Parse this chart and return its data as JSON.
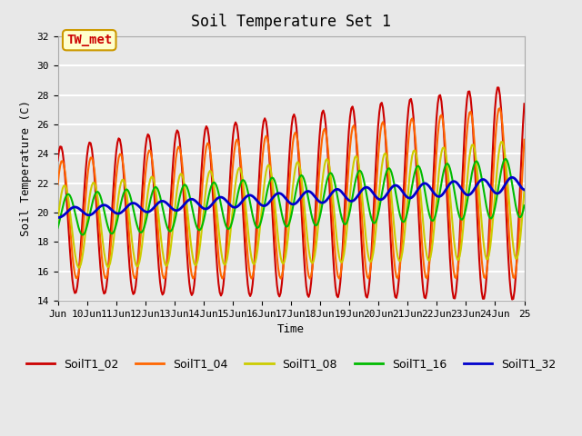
{
  "title": "Soil Temperature Set 1",
  "xlabel": "Time",
  "ylabel": "Soil Temperature (C)",
  "ylim": [
    14,
    32
  ],
  "xlim_start": 9.0,
  "xlim_end": 25.0,
  "background_color": "#e8e8e8",
  "plot_bg_color": "#e8e8e8",
  "grid_color": "white",
  "annotation_text": "TW_met",
  "annotation_color": "#cc0000",
  "annotation_bg": "#ffffcc",
  "annotation_border": "#cc9900",
  "series_colors": {
    "SoilT1_02": "#cc0000",
    "SoilT1_04": "#ff6600",
    "SoilT1_08": "#cccc00",
    "SoilT1_16": "#00bb00",
    "SoilT1_32": "#0000cc"
  },
  "series_linewidths": {
    "SoilT1_02": 1.5,
    "SoilT1_04": 1.5,
    "SoilT1_08": 1.5,
    "SoilT1_16": 1.5,
    "SoilT1_32": 2.0
  },
  "xtick_labels": [
    "Jun",
    "10Jun",
    "11Jun",
    "12Jun",
    "13Jun",
    "14Jun",
    "15Jun",
    "16Jun",
    "17Jun",
    "18Jun",
    "19Jun",
    "20Jun",
    "21Jun",
    "22Jun",
    "23Jun",
    "24Jun",
    "25"
  ],
  "xtick_positions": [
    9.0,
    10.0,
    11.0,
    12.0,
    13.0,
    14.0,
    15.0,
    16.0,
    17.0,
    18.0,
    19.0,
    20.0,
    21.0,
    22.0,
    23.0,
    24.0,
    25.0
  ],
  "ytick_labels": [
    "14",
    "16",
    "18",
    "20",
    "22",
    "24",
    "26",
    "28",
    "30",
    "32"
  ],
  "ytick_positions": [
    14,
    16,
    18,
    20,
    22,
    24,
    26,
    28,
    30,
    32
  ]
}
